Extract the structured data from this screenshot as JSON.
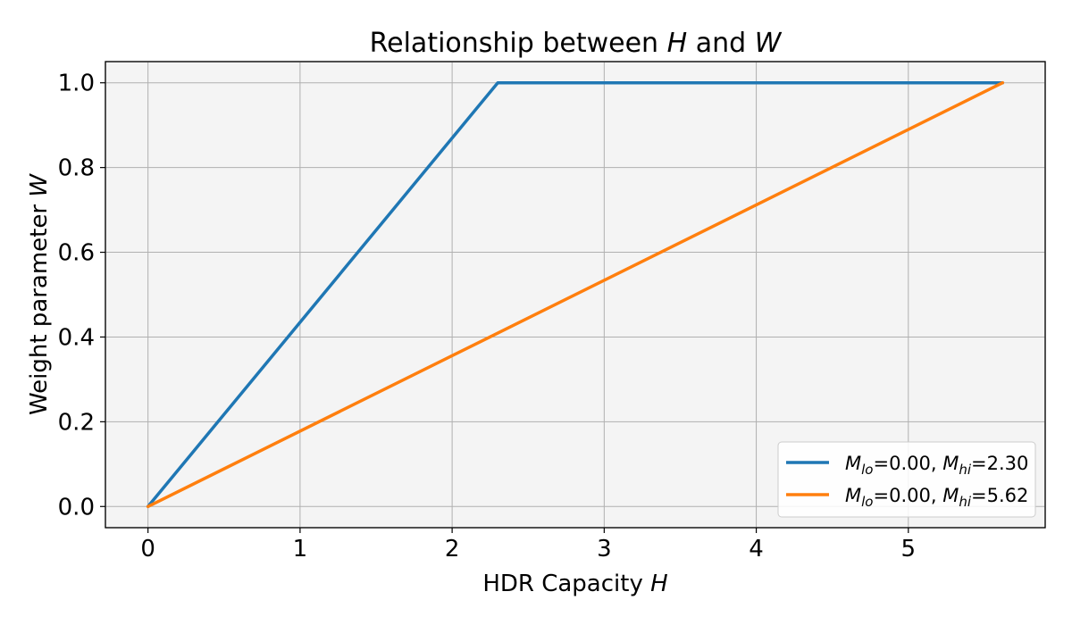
{
  "chart_data": {
    "type": "line",
    "title": {
      "pre": "Relationship between ",
      "var1": "H",
      "mid": " and ",
      "var2": "W"
    },
    "xlabel": {
      "text": "HDR Capacity ",
      "var": "H"
    },
    "ylabel": {
      "text": "Weight parameter ",
      "var": "W"
    },
    "xlim": [
      -0.28,
      5.9
    ],
    "ylim": [
      -0.05,
      1.05
    ],
    "xticks": [
      0,
      1,
      2,
      3,
      4,
      5
    ],
    "yticks": [
      0.0,
      0.2,
      0.4,
      0.6,
      0.8,
      1.0
    ],
    "xtick_labels": [
      "0",
      "1",
      "2",
      "3",
      "4",
      "5"
    ],
    "ytick_labels": [
      "0.0",
      "0.2",
      "0.4",
      "0.6",
      "0.8",
      "1.0"
    ],
    "grid": true,
    "background": "#f4f4f4",
    "legend_position": "bottom-right",
    "series": [
      {
        "name": {
          "m1": "M",
          "sub1": "lo",
          "v1": "=0.00, ",
          "m2": "M",
          "sub2": "hi",
          "v2": "=2.30"
        },
        "color": "#1f77b4",
        "x": [
          0,
          2.3,
          5.62
        ],
        "y": [
          0,
          1.0,
          1.0
        ]
      },
      {
        "name": {
          "m1": "M",
          "sub1": "lo",
          "v1": "=0.00, ",
          "m2": "M",
          "sub2": "hi",
          "v2": "=5.62"
        },
        "color": "#ff7f0e",
        "x": [
          0,
          5.62
        ],
        "y": [
          0,
          1.0
        ]
      }
    ]
  }
}
